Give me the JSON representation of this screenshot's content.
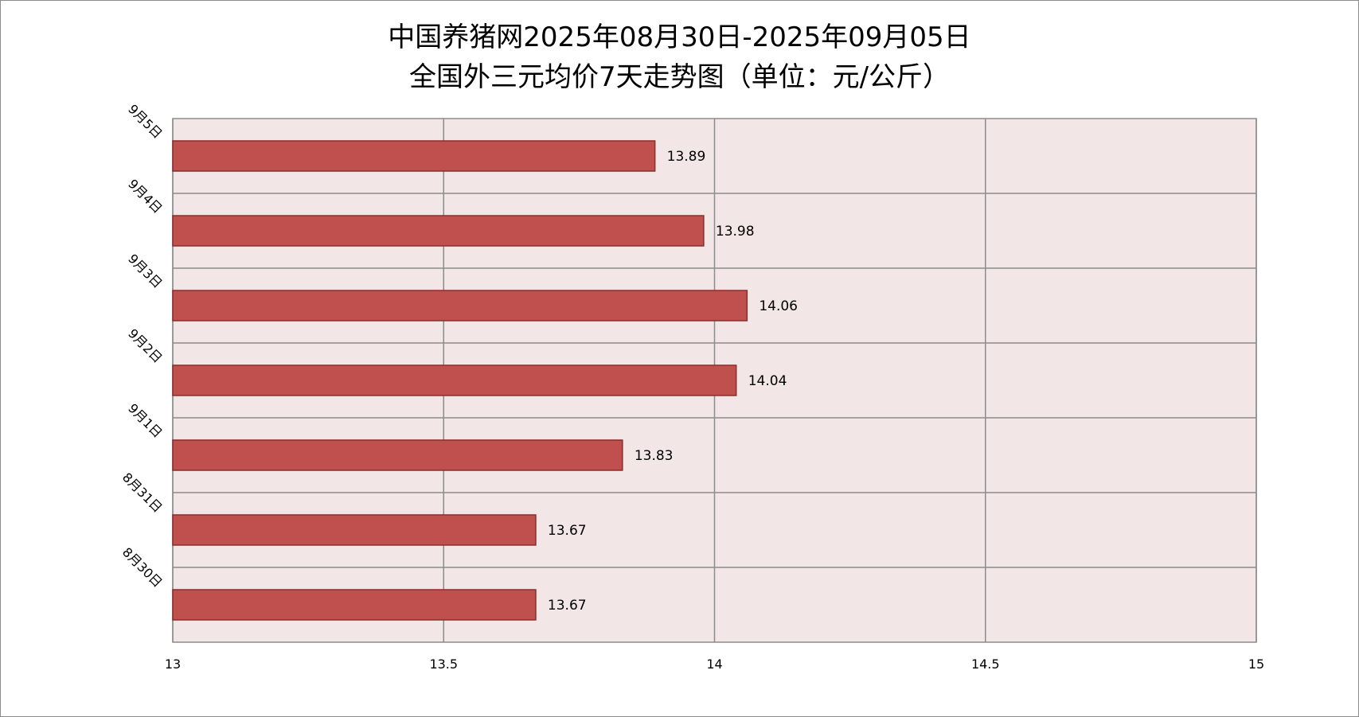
{
  "chart_data": {
    "type": "bar",
    "orientation": "horizontal",
    "title": "中国养猪网2025年08月30日-2025年09月05日",
    "subtitle": "全国外三元均价7天走势图（单位：元/公斤）",
    "xlabel": "",
    "ylabel": "",
    "categories": [
      "9月5日",
      "9月4日",
      "9月3日",
      "9月2日",
      "9月1日",
      "8月31日",
      "8月30日"
    ],
    "values": [
      13.89,
      13.98,
      14.06,
      14.04,
      13.83,
      13.67,
      13.67
    ],
    "data_labels": [
      "13.89",
      "13.98",
      "14.06",
      "14.04",
      "13.83",
      "13.67",
      "13.67"
    ],
    "x_ticks": [
      "13",
      "13.5",
      "14",
      "14.5",
      "15"
    ],
    "x_tick_values": [
      13,
      13.5,
      14,
      14.5,
      15
    ],
    "xlim": [
      13,
      15
    ],
    "grid": true,
    "legend": "none",
    "colors": {
      "bar_fill": "#c0504d",
      "bar_stroke": "#8b2e2c",
      "plot_background": "#f2e6e6",
      "grid": "#8c8c8c",
      "frame": "#8c8c8c"
    }
  }
}
